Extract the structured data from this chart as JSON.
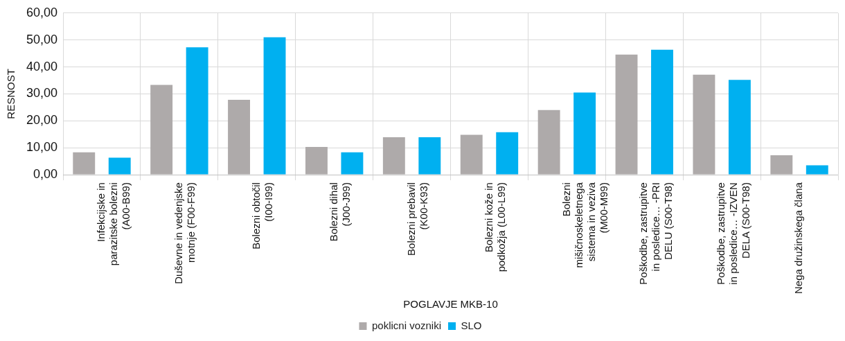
{
  "chart_data": {
    "type": "bar",
    "xlabel": "POGLAVJE MKB-10",
    "ylabel": "RESNOST",
    "categories": [
      "Infekcijske in parazitske bolezni (A00-B99)",
      "Duševne in vedenjske motnje (F00-F99)",
      "Bolezni obtočil (I00-I99)",
      "Bolezni dihal (J00-J99)",
      "Bolezni prebavil (K00-K93)",
      "Bolezni kože in podkožja (L00-L99)",
      "Bolezni mišičnoskeletnega sistema in veziva (M00-M99)",
      "Poškodbe, zastrupitve in posledice… -PRI DELU (S00-T98)",
      "Poškodbe, zastrupitve in posledice… -IZVEN DELA (S00-T98)",
      "Nega družinskega člana"
    ],
    "series": [
      {
        "name": "poklicni vozniki",
        "color": "#aeaaaa",
        "values": [
          8.3,
          33.3,
          27.8,
          10.3,
          13.9,
          14.8,
          24.0,
          44.6,
          37.1,
          7.2
        ]
      },
      {
        "name": "SLO",
        "color": "#00b0f0",
        "values": [
          6.3,
          47.3,
          51.0,
          8.3,
          13.9,
          15.8,
          30.5,
          46.4,
          35.2,
          3.5
        ]
      }
    ],
    "ylim": [
      0,
      60
    ],
    "yticks": [
      {
        "value": 0,
        "label": "0,00"
      },
      {
        "value": 10,
        "label": "10,00"
      },
      {
        "value": 20,
        "label": "20,00"
      },
      {
        "value": 30,
        "label": "30,00"
      },
      {
        "value": 40,
        "label": "40,00"
      },
      {
        "value": 50,
        "label": "50,00"
      },
      {
        "value": 60,
        "label": "60,00"
      }
    ],
    "grid": true,
    "legend": "bottom"
  }
}
